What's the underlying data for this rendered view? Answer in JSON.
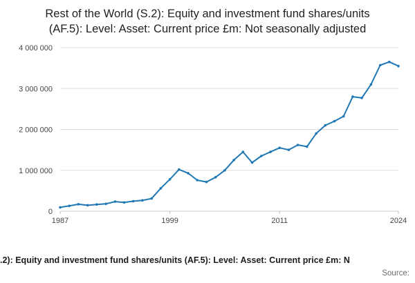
{
  "title": "Rest of the World (S.2): Equity and investment fund shares/units (AF.5): Level: Asset: Current price £m: Not seasonally adjusted",
  "footer": {
    "caption": ".2): Equity and investment fund shares/units (AF.5): Level: Asset: Current price £m: N",
    "source_label": "Source:"
  },
  "chart_data": {
    "type": "line",
    "title": "Rest of the World (S.2): Equity and investment fund shares/units (AF.5): Level: Asset: Current price £m: Not seasonally adjusted",
    "xlabel": "",
    "ylabel": "",
    "x": [
      1987,
      1988,
      1989,
      1990,
      1991,
      1992,
      1993,
      1994,
      1995,
      1996,
      1997,
      1998,
      1999,
      2000,
      2001,
      2002,
      2003,
      2004,
      2005,
      2006,
      2007,
      2008,
      2009,
      2010,
      2011,
      2012,
      2013,
      2014,
      2015,
      2016,
      2017,
      2018,
      2019,
      2020,
      2021,
      2022,
      2023,
      2024
    ],
    "series": [
      {
        "name": "Level: Asset: Current price £m: Not seasonally adjusted",
        "values": [
          95000,
          130000,
          170000,
          145000,
          165000,
          180000,
          235000,
          215000,
          245000,
          265000,
          310000,
          560000,
          780000,
          1020000,
          930000,
          760000,
          715000,
          830000,
          1000000,
          1250000,
          1450000,
          1190000,
          1350000,
          1450000,
          1550000,
          1500000,
          1620000,
          1580000,
          1900000,
          2100000,
          2200000,
          2320000,
          2800000,
          2770000,
          3100000,
          3570000,
          3650000,
          3550000
        ]
      }
    ],
    "ylim": [
      0,
      4000000
    ],
    "yticks": [
      0,
      1000000,
      2000000,
      3000000,
      4000000
    ],
    "ytick_labels": [
      "0",
      "1 000 000",
      "2 000 000",
      "3 000 000",
      "4 000 000"
    ],
    "xticks": [
      1987,
      1999,
      2011,
      2024
    ],
    "line_color": "#1f77b4",
    "grid": true,
    "markers": true,
    "legend": false
  }
}
